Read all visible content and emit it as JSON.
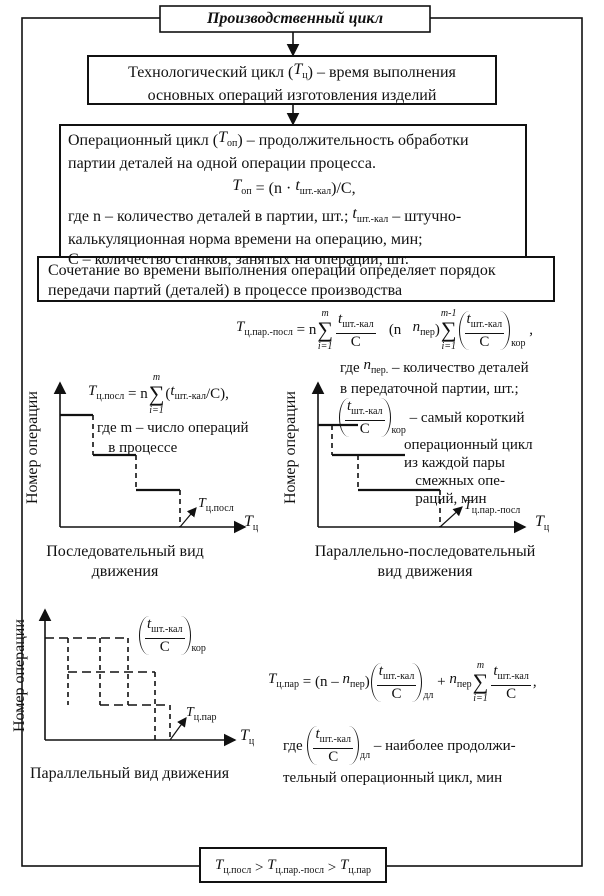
{
  "title": "Производственный цикл",
  "technological_cycle": [
    [
      "Технологический цикл (",
      {
        "t": "T",
        "sub": "ц"
      },
      ") – время выполнения"
    ],
    [
      "основных операций изготовления изделий"
    ]
  ],
  "operational_cycle": {
    "lines": [
      [
        "Операционный цикл (",
        {
          "t": "T",
          "sub": "оп"
        },
        ") – продолжительность обработки"
      ],
      [
        "партии деталей на одной операции процесса."
      ]
    ],
    "formula": [
      [
        {
          "t": "T",
          "sub": "оп"
        },
        " = (n · ",
        {
          "t": "t",
          "sub": "шт.-кал"
        },
        ")/C,"
      ]
    ],
    "notes": [
      [
        "где n – количество деталей в партии, шт.; ",
        {
          "t": "t",
          "sub": "шт.-кал"
        },
        " – штучно-"
      ],
      [
        "калькуляционная норма времени на операцию, мин;"
      ],
      [
        "С – количество станков, занятых на операции, шт."
      ]
    ]
  },
  "combination": [
    [
      "Сочетание во времени выполнения операций определяет порядок"
    ],
    [
      "передачи партий (деталей) в процессе производства"
    ]
  ],
  "sequential": {
    "formula": [
      [
        {
          "t": "T",
          "sub": "ц.посл"
        },
        " = n",
        {
          "over": "m",
          "sum": "∑",
          "under": "i=1"
        },
        "(",
        {
          "t": "t",
          "sub": "шт.-кал"
        },
        "/C),"
      ]
    ],
    "notes": [
      [
        "где m – число операций"
      ],
      [
        "   в процессе"
      ]
    ],
    "y_label": [
      [
        "Номер операции"
      ]
    ],
    "end_label": [
      [
        {
          "t": "T",
          "sub": "ц.посл"
        }
      ]
    ],
    "x_label": [
      [
        {
          "t": "T",
          "sub": "ц"
        }
      ]
    ],
    "caption": [
      [
        "Последовательный вид"
      ],
      [
        "движения"
      ]
    ]
  },
  "parallel_sequential": {
    "formula": [
      [
        {
          "t": "T",
          "sub": "ц.пар.-посл"
        },
        " = n",
        {
          "over": "m",
          "sum": "∑",
          "under": "i=1"
        },
        {
          "num": [
            {
              "t": "t",
              "sub": "шт.-кал"
            }
          ],
          "den": [
            "C"
          ]
        },
        "   (n   ",
        {
          "t": "n",
          "sub": "пер"
        },
        ")",
        {
          "over": "m-1",
          "sum": "∑",
          "under": "i=1"
        },
        {
          "paren": [
            {
              "num": [
                {
                  "t": "t",
                  "sub": "шт.-кал"
                }
              ],
              "den": [
                "C"
              ]
            }
          ],
          "sub": "кор"
        },
        " ,"
      ]
    ],
    "notes": [
      [
        "где ",
        {
          "t": "n",
          "sub": "пер."
        },
        " – количество деталей"
      ],
      [
        "в передаточной партии, шт.;"
      ]
    ],
    "short_cycle": [
      [
        {
          "paren": [
            {
              "num": [
                {
                  "t": "t",
                  "sub": "шт.-кал"
                }
              ],
              "den": [
                "C"
              ]
            }
          ],
          "sub": "кор"
        },
        " – самый короткий"
      ]
    ],
    "short_cycle_notes": [
      [
        "операционный цикл"
      ],
      [
        "из каждой пары"
      ],
      [
        "   смежных опе-"
      ],
      [
        "   раций, мин"
      ]
    ],
    "y_label": [
      [
        "Номер операции"
      ]
    ],
    "end_label": [
      [
        {
          "t": "T",
          "sub": "ц.пар.-посл"
        }
      ]
    ],
    "x_label": [
      [
        {
          "t": "T",
          "sub": "ц"
        }
      ]
    ],
    "caption": [
      [
        "Параллельно-последовательный"
      ],
      [
        "вид движения"
      ]
    ]
  },
  "parallel": {
    "short_cycle": [
      [
        {
          "paren": [
            {
              "num": [
                {
                  "t": "t",
                  "sub": "шт.-кал"
                }
              ],
              "den": [
                "C"
              ]
            }
          ],
          "sub": "кор"
        }
      ]
    ],
    "y_label": [
      [
        "Номер операции"
      ]
    ],
    "end_label": [
      [
        {
          "t": "T",
          "sub": "ц.пар"
        }
      ]
    ],
    "x_label": [
      [
        {
          "t": "T",
          "sub": "ц"
        }
      ]
    ],
    "caption": [
      [
        "Параллельный вид движения"
      ]
    ],
    "formula": [
      [
        {
          "t": "T",
          "sub": "ц.пар"
        },
        " = (n – ",
        {
          "t": "n",
          "sub": "пер"
        },
        ")",
        {
          "paren": [
            {
              "num": [
                {
                  "t": "t",
                  "sub": "шт.-кал"
                }
              ],
              "den": [
                "C"
              ]
            }
          ],
          "sub": "дл"
        },
        " + ",
        {
          "t": "n",
          "sub": "пер"
        },
        {
          "over": "m",
          "sum": "∑",
          "under": "i=1"
        },
        {
          "num": [
            {
              "t": "t",
              "sub": "шт.-кал"
            }
          ],
          "den": [
            "C"
          ]
        },
        ","
      ]
    ],
    "notes": [
      [
        "где ",
        {
          "paren": [
            {
              "num": [
                {
                  "t": "t",
                  "sub": "шт.-кал"
                }
              ],
              "den": [
                "C"
              ]
            }
          ],
          "sub": "дл"
        },
        " – наиболее продолжи-"
      ],
      [
        "тельный операционный цикл, мин"
      ]
    ]
  },
  "comparison": [
    [
      {
        "t": "T",
        "sub": "ц.посл"
      },
      " > ",
      {
        "t": "T",
        "sub": "ц.пар.-посл"
      },
      " > ",
      {
        "t": "T",
        "sub": "ц.пар"
      }
    ]
  ]
}
